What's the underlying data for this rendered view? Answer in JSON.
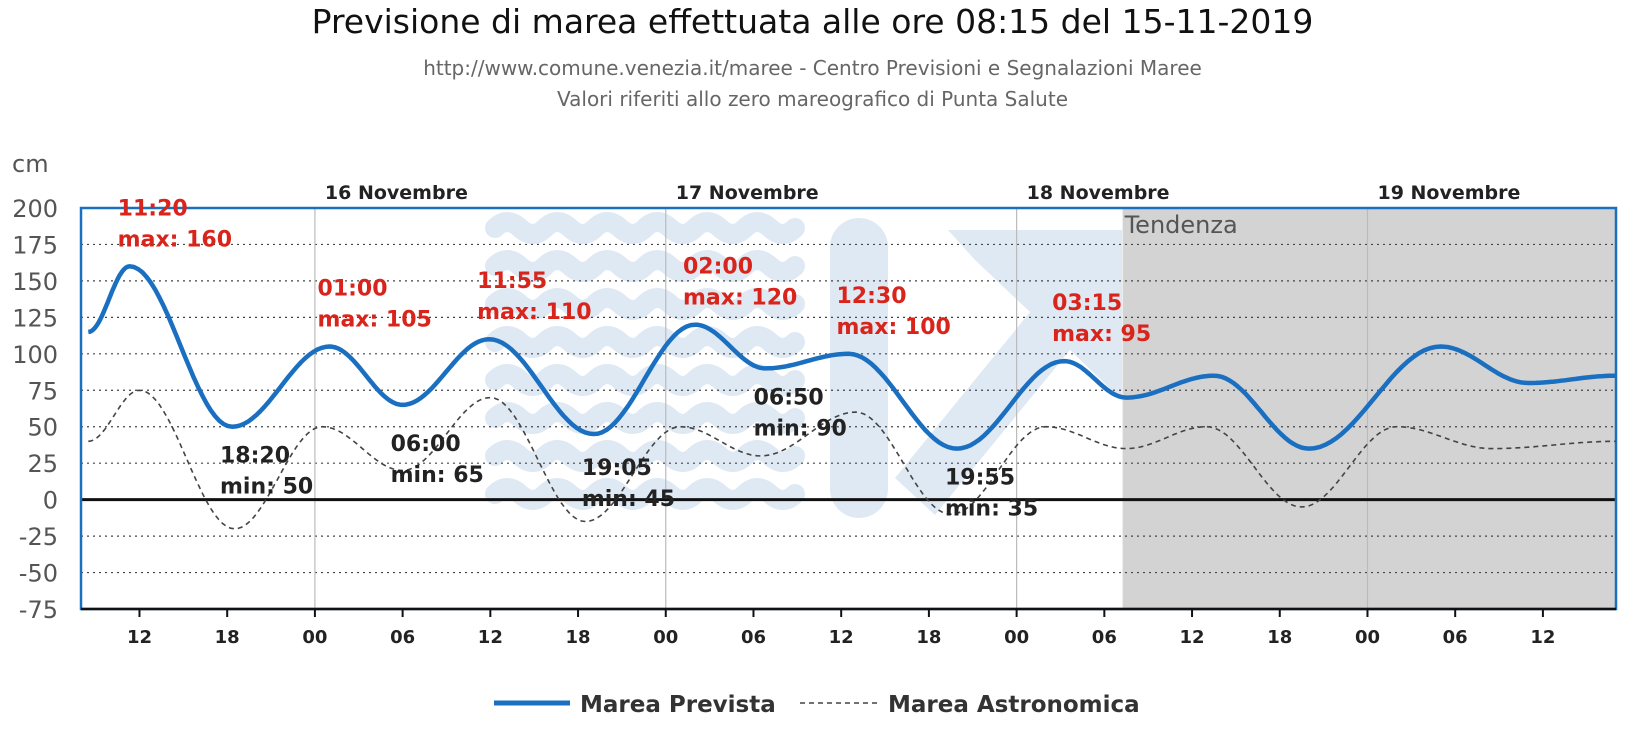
{
  "header": {
    "title": "Previsione di marea effettuata alle ore 08:15 del 15-11-2019",
    "subtitle_1": "http://www.comune.venezia.it/maree - Centro Previsioni e Segnalazioni Maree",
    "subtitle_2": "Valori riferiti allo zero mareografico di Punta Salute"
  },
  "colors": {
    "forecast": "#1a6fc1",
    "astronomical": "#444444",
    "max_label": "#d9241c",
    "min_label": "#222222",
    "trend_shade": "#d3d3d3",
    "watermark": "#dfe9f4"
  },
  "chart_data": {
    "type": "line",
    "y_unit": "cm",
    "ylim": [
      -75,
      200
    ],
    "y_ticks": [
      200,
      175,
      150,
      125,
      100,
      75,
      50,
      25,
      0,
      -25,
      -50,
      -75
    ],
    "x_unit": "hours from 15 Nov 00:00",
    "xlim": [
      8,
      113
    ],
    "x_ticks": [
      {
        "x": 12,
        "label": "12"
      },
      {
        "x": 18,
        "label": "18"
      },
      {
        "x": 24,
        "label": "00"
      },
      {
        "x": 30,
        "label": "06"
      },
      {
        "x": 36,
        "label": "12"
      },
      {
        "x": 42,
        "label": "18"
      },
      {
        "x": 48,
        "label": "00"
      },
      {
        "x": 54,
        "label": "06"
      },
      {
        "x": 60,
        "label": "12"
      },
      {
        "x": 66,
        "label": "18"
      },
      {
        "x": 72,
        "label": "00"
      },
      {
        "x": 78,
        "label": "06"
      },
      {
        "x": 84,
        "label": "12"
      },
      {
        "x": 90,
        "label": "18"
      },
      {
        "x": 96,
        "label": "00"
      },
      {
        "x": 102,
        "label": "06"
      },
      {
        "x": 108,
        "label": "12"
      }
    ],
    "days": [
      {
        "x": 24,
        "label": "16 Novembre"
      },
      {
        "x": 48,
        "label": "17 Novembre"
      },
      {
        "x": 72,
        "label": "18 Novembre"
      },
      {
        "x": 96,
        "label": "19 Novembre"
      }
    ],
    "trend_region": {
      "from": 79.25,
      "label": "Tendenza"
    },
    "grid": true,
    "legend": "bottom-center",
    "series": [
      {
        "name": "Marea Prevista",
        "style": "solid",
        "points": [
          [
            8.5,
            115
          ],
          [
            11.33,
            160
          ],
          [
            18.33,
            50
          ],
          [
            25,
            105
          ],
          [
            30,
            65
          ],
          [
            35.92,
            110
          ],
          [
            43.08,
            45
          ],
          [
            50,
            120
          ],
          [
            54.83,
            90
          ],
          [
            60.5,
            100
          ],
          [
            67.92,
            35
          ],
          [
            75.25,
            95
          ],
          [
            79.5,
            70
          ],
          [
            85.5,
            85
          ],
          [
            92,
            35
          ],
          [
            101,
            105
          ],
          [
            107,
            80
          ],
          [
            113,
            85
          ]
        ]
      },
      {
        "name": "Marea Astronomica",
        "style": "dashed",
        "points": [
          [
            8.5,
            40
          ],
          [
            12,
            75
          ],
          [
            18.5,
            -20
          ],
          [
            24.5,
            50
          ],
          [
            30,
            20
          ],
          [
            36,
            70
          ],
          [
            42.5,
            -15
          ],
          [
            49,
            50
          ],
          [
            54.5,
            30
          ],
          [
            61,
            60
          ],
          [
            67.5,
            -10
          ],
          [
            74,
            50
          ],
          [
            79.5,
            35
          ],
          [
            85,
            50
          ],
          [
            91.5,
            -5
          ],
          [
            98,
            50
          ],
          [
            104.5,
            35
          ],
          [
            113,
            40
          ]
        ]
      }
    ],
    "annotations": [
      {
        "kind": "max",
        "x": 11.33,
        "time": "11:20",
        "text": "max: 160",
        "dy": -20
      },
      {
        "kind": "min",
        "x": 18.33,
        "time": "18:20",
        "text": "min: 50",
        "dy": 20
      },
      {
        "kind": "max",
        "x": 25,
        "time": "01:00",
        "text": "max: 105",
        "dy": -20
      },
      {
        "kind": "min",
        "x": 30,
        "time": "06:00",
        "text": "min: 65",
        "dy": 30
      },
      {
        "kind": "max",
        "x": 35.92,
        "time": "11:55",
        "text": "max: 110",
        "dy": -20
      },
      {
        "kind": "min",
        "x": 43.08,
        "time": "19:05",
        "text": "min: 45",
        "dy": 25
      },
      {
        "kind": "max",
        "x": 50,
        "time": "02:00",
        "text": "max: 120",
        "dy": -20
      },
      {
        "kind": "min",
        "x": 54.83,
        "time": "06:50",
        "text": "min: 90",
        "dy": 20
      },
      {
        "kind": "max",
        "x": 60.5,
        "time": "12:30",
        "text": "max: 100",
        "dy": -20
      },
      {
        "kind": "min",
        "x": 67.92,
        "time": "19:55",
        "text": "min: 35",
        "dy": 20
      },
      {
        "kind": "max",
        "x": 75.25,
        "time": "03:15",
        "text": "max: 95",
        "dy": -20
      }
    ]
  }
}
